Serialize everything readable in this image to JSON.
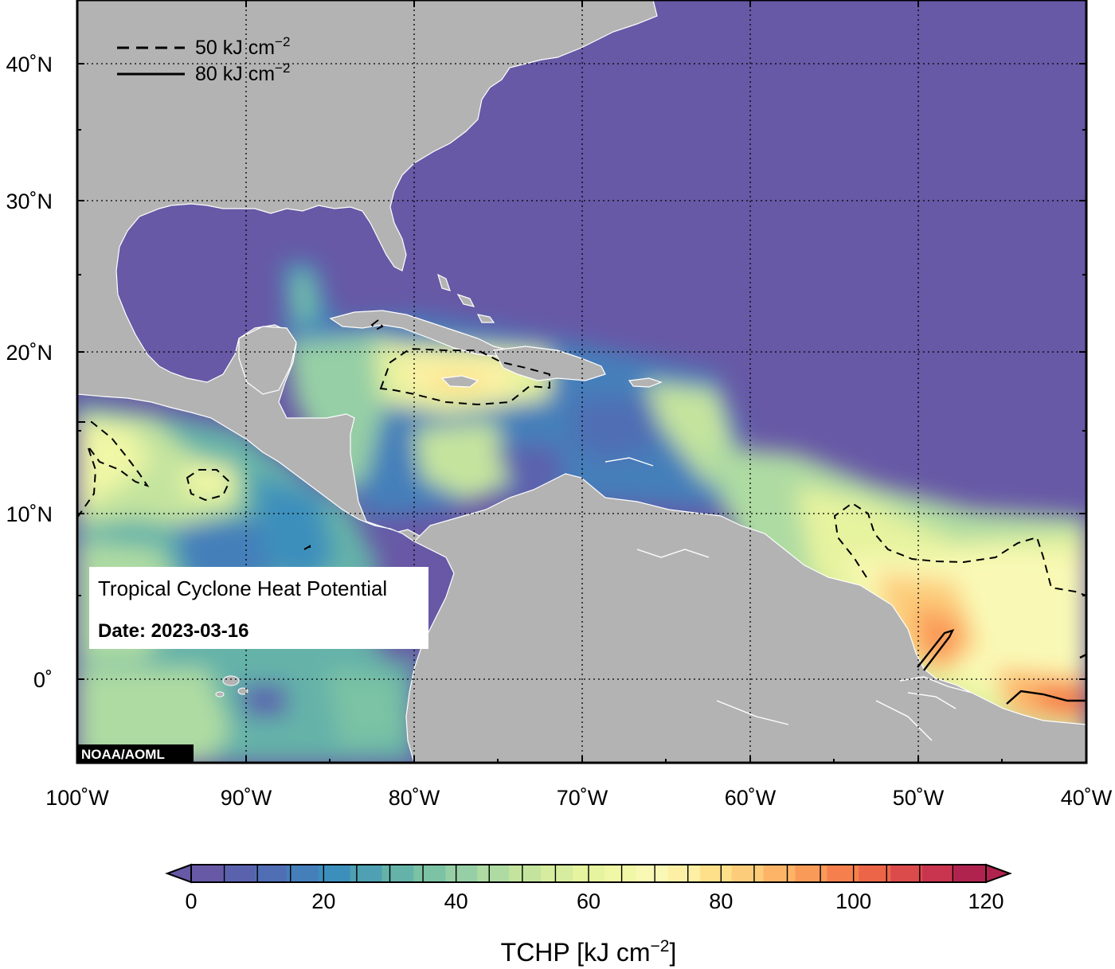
{
  "map": {
    "credit": "NOAA/AOML",
    "lon_ticks": [
      "100˚W",
      "90˚W",
      "80˚W",
      "70˚W",
      "60˚W",
      "50˚W",
      "40˚W"
    ],
    "lat_ticks": [
      "40˚N",
      "30˚N",
      "20˚N",
      "10˚N",
      "0˚"
    ],
    "colors": {
      "land": "#b3b3b3",
      "ocean_low": "#6759a6",
      "grid": "#000000"
    }
  },
  "legend": {
    "dashed_label": "50 kJ cm",
    "solid_label": "80 kJ cm",
    "exponent": "−2"
  },
  "info_box": {
    "title": "Tropical Cyclone Heat Potential",
    "date": "Date: 2023-03-16"
  },
  "colorbar": {
    "ticks": [
      "0",
      "20",
      "40",
      "60",
      "80",
      "100",
      "120"
    ],
    "title": "TCHP [kJ cm",
    "title_exponent": "−2",
    "title_close": "]",
    "min": 0,
    "max": 120,
    "step": 5,
    "colors": [
      "#6759a6",
      "#5b62ad",
      "#4f6eb4",
      "#447fba",
      "#3d8fbb",
      "#4ea0b2",
      "#65b2a9",
      "#7cc2a4",
      "#96cfa5",
      "#aedba2",
      "#c4e49e",
      "#d6ec9f",
      "#e6f39f",
      "#f0f7a6",
      "#f9f9b5",
      "#fdf0a5",
      "#fee08b",
      "#fdcc7a",
      "#fdb467",
      "#fa9a58",
      "#f5804d",
      "#ec6548",
      "#dc4b4c",
      "#c9344e",
      "#b0234f"
    ]
  }
}
